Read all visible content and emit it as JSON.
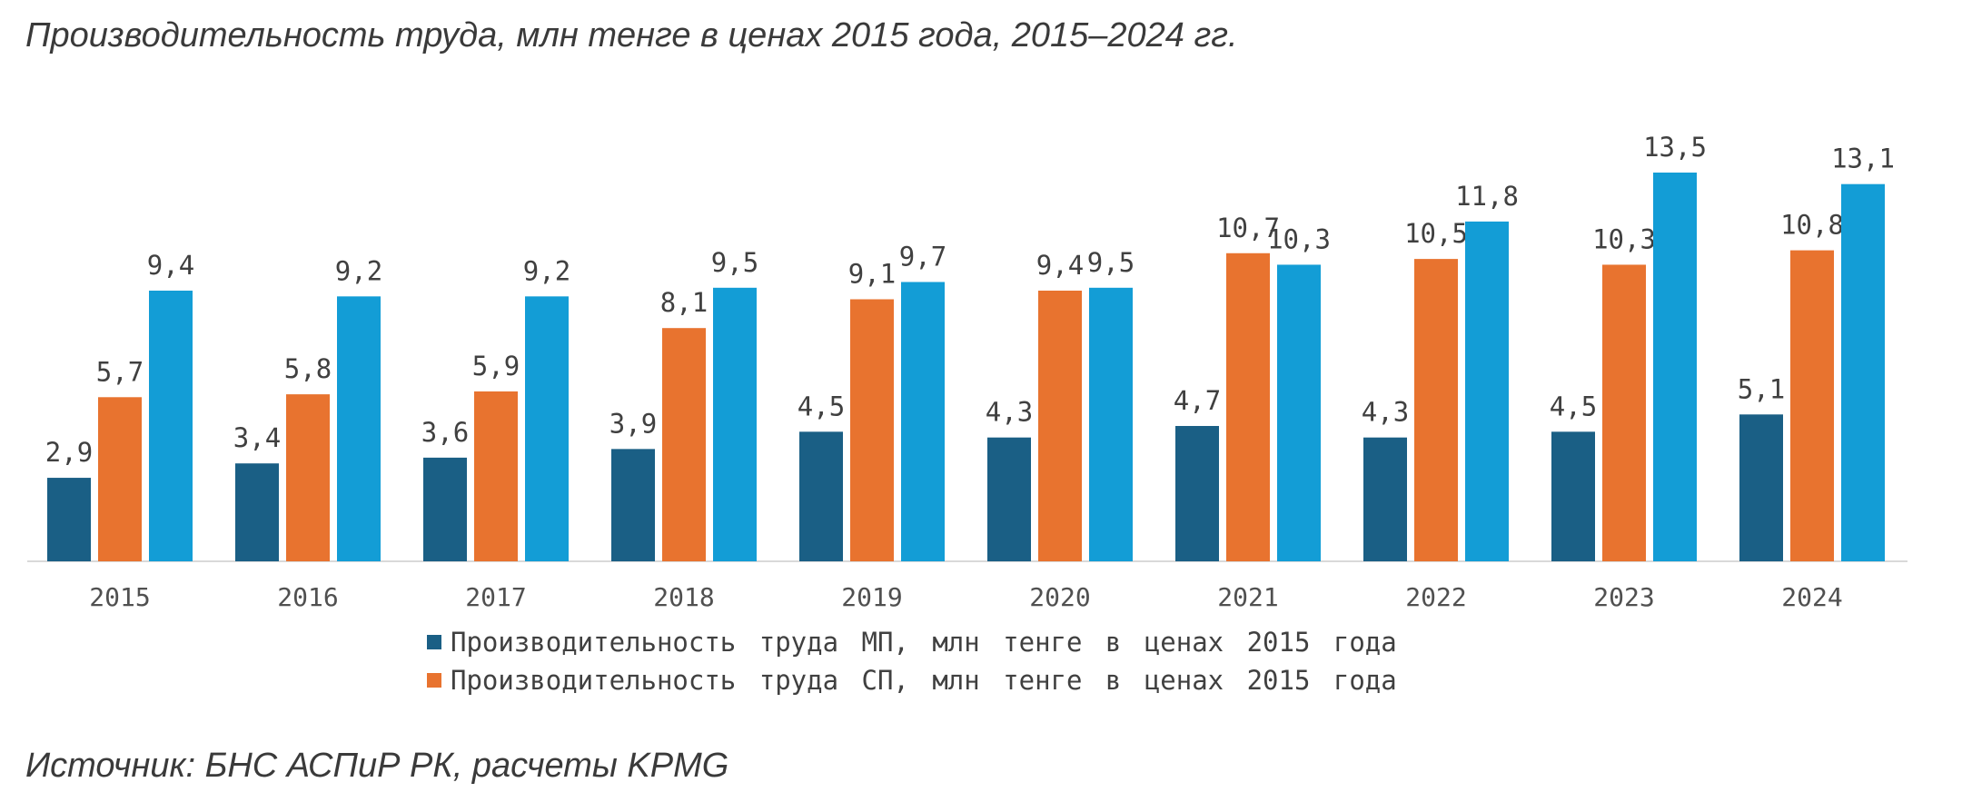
{
  "chart_data": {
    "type": "bar",
    "title": "Производительность труда, млн тенге в ценах 2015 года, 2015–2024 гг.",
    "source": "Источник: БНС АСПиР РК, расчеты KPMG",
    "categories": [
      "2015",
      "2016",
      "2017",
      "2018",
      "2019",
      "2020",
      "2021",
      "2022",
      "2023",
      "2024"
    ],
    "series": [
      {
        "name": "Производительность труда МП, млн тенге в ценах 2015 года",
        "color": "#1a5f85",
        "values": [
          2.9,
          3.4,
          3.6,
          3.9,
          4.5,
          4.3,
          4.7,
          4.3,
          4.5,
          5.1
        ],
        "labels": [
          "2,9",
          "3,4",
          "3,6",
          "3,9",
          "4,5",
          "4,3",
          "4,7",
          "4,3",
          "4,5",
          "5,1"
        ]
      },
      {
        "name": "Производительность труда СП, млн тенге в ценах 2015 года",
        "color": "#e8732f",
        "values": [
          5.7,
          5.8,
          5.9,
          8.1,
          9.1,
          9.4,
          10.7,
          10.5,
          10.3,
          10.8
        ],
        "labels": [
          "5,7",
          "5,8",
          "5,9",
          "8,1",
          "9,1",
          "9,4",
          "10,7",
          "10,5",
          "10,3",
          "10,8"
        ]
      },
      {
        "name": "",
        "color": "#139dd6",
        "values": [
          9.4,
          9.2,
          9.2,
          9.5,
          9.7,
          9.5,
          10.3,
          11.8,
          13.5,
          13.1
        ],
        "labels": [
          "9,4",
          "9,2",
          "9,2",
          "9,5",
          "9,7",
          "9,5",
          "10,3",
          "11,8",
          "13,5",
          "13,1"
        ]
      }
    ],
    "ylim": [
      0,
      13.5
    ],
    "grid": false,
    "legend": "bottom"
  },
  "legend": {
    "items": [
      {
        "label": "Производительность труда МП, млн тенге в ценах 2015 года",
        "color": "#1a5f85"
      },
      {
        "label": "Производительность труда СП, млн тенге в ценах 2015 года",
        "color": "#e8732f"
      }
    ]
  }
}
